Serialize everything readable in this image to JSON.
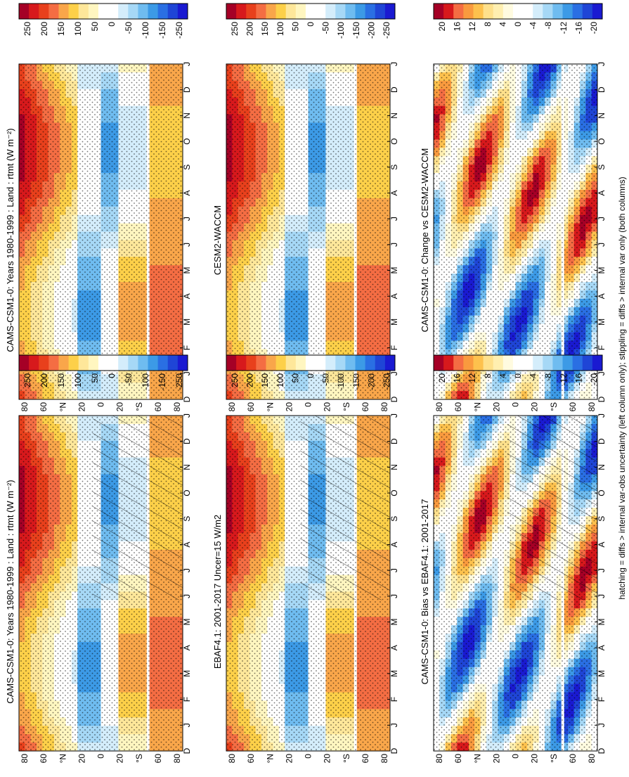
{
  "footnote": "hatching = diffs > internal var-obs uncertainty (left column only); stippling = diffs > internal var only (both columns)",
  "colors": {
    "abs_scale": [
      "#a50026",
      "#d7191c",
      "#e8401c",
      "#f46d43",
      "#f9a64a",
      "#fdd049",
      "#fee79a",
      "#fff6c0",
      "#ffffff",
      "#ffffff",
      "#d4edfb",
      "#a6d8f6",
      "#6fbcf0",
      "#3c9ae6",
      "#2a6fe3",
      "#1f45d6",
      "#1a1ad1"
    ],
    "diff_scale": [
      "#a50026",
      "#d7191c",
      "#f46d43",
      "#f99a3e",
      "#fdc14d",
      "#fee08b",
      "#ffefb0",
      "#fffbe0",
      "#ffffff",
      "#ffffff",
      "#d4edfb",
      "#a6d8f6",
      "#6fbcf0",
      "#3c9ae6",
      "#2a6fe3",
      "#1f45d6",
      "#1a1ad1"
    ]
  },
  "panels": [
    {
      "title": "CAMS-CSM1-0: Years 1980-1999 : Land : rtmt (W m⁻²)",
      "kind": "abs",
      "hatch": true,
      "colorbar": {
        "labels": [
          "250",
          "200",
          "150",
          "100",
          "50",
          "0",
          "-50",
          "-100",
          "-150",
          "-250"
        ]
      }
    },
    {
      "title": "CAMS-CSM1-0: Years 1980-1999 : Land : rtmt (W m⁻²)",
      "kind": "abs",
      "hatch": false,
      "colorbar": {
        "labels": [
          "250",
          "200",
          "150",
          "100",
          "50",
          "0",
          "-50",
          "-100",
          "-150",
          "-250"
        ]
      }
    },
    {
      "title": "EBAF4.1: 2001-2017 Uncer=15 W/m2",
      "kind": "abs",
      "hatch": true,
      "colorbar": {
        "labels": [
          "250",
          "200",
          "150",
          "100",
          "50",
          "0",
          "-50",
          "-100",
          "-150",
          "-200",
          "-250"
        ]
      }
    },
    {
      "title": "CESM2-WACCM",
      "kind": "abs",
      "hatch": false,
      "colorbar": {
        "labels": [
          "250",
          "200",
          "150",
          "100",
          "50",
          "0",
          "-50",
          "-100",
          "-150",
          "-200",
          "-250"
        ]
      }
    },
    {
      "title": "CAMS-CSM1-0: Bias vs EBAF4.1: 2001-2017",
      "kind": "diff",
      "hatch": true,
      "colorbar": {
        "labels": [
          "20",
          "16",
          "12",
          "8",
          "4",
          "0",
          "-4",
          "-8",
          "-12",
          "-16",
          "-20"
        ]
      }
    },
    {
      "title": "CAMS-CSM1-0: Change vs CESM2-WACCM",
      "kind": "diff",
      "hatch": false,
      "colorbar": {
        "labels": [
          "20",
          "16",
          "12",
          "8",
          "4",
          "0",
          "-4",
          "-8",
          "-12",
          "-16",
          "-20"
        ]
      }
    }
  ],
  "chart_data": [
    {
      "type": "heatmap",
      "title": "CAMS-CSM1-0: Years 1980-1999 : Land : rtmt (W m⁻²)",
      "x_ticks": [
        "D",
        "J",
        "F",
        "M",
        "A",
        "M",
        "J",
        "J",
        "A",
        "S",
        "O",
        "N",
        "D",
        "J"
      ],
      "y_ticks": [
        "80",
        "60",
        "°N",
        "20",
        "0",
        "20",
        "°S",
        "60",
        "80"
      ],
      "colorbar": [
        "250",
        "200",
        "150",
        "100",
        "50",
        "0",
        "-50",
        "-100",
        "-150",
        "-250"
      ]
    },
    {
      "type": "heatmap",
      "title": "CAMS-CSM1-0: Years 1980-1999 : Land : rtmt (W m⁻²)",
      "x_ticks": [
        "D",
        "J",
        "F",
        "M",
        "A",
        "M",
        "J",
        "J",
        "A",
        "S",
        "O",
        "N",
        "D",
        "J"
      ],
      "y_ticks": [
        "80",
        "60",
        "°N",
        "20",
        "0",
        "20",
        "°S",
        "60",
        "80"
      ],
      "colorbar": [
        "250",
        "200",
        "150",
        "100",
        "50",
        "0",
        "-50",
        "-100",
        "-150",
        "-250"
      ]
    },
    {
      "type": "heatmap",
      "title": "EBAF4.1: 2001-2017 Uncer=15 W/m2",
      "x_ticks": [
        "D",
        "J",
        "F",
        "M",
        "A",
        "M",
        "J",
        "J",
        "A",
        "S",
        "O",
        "N",
        "D",
        "J"
      ],
      "y_ticks": [
        "80",
        "60",
        "°N",
        "20",
        "0",
        "20",
        "°S",
        "60",
        "80"
      ],
      "colorbar": [
        "250",
        "200",
        "150",
        "100",
        "50",
        "0",
        "-50",
        "-100",
        "-150",
        "-200",
        "-250"
      ]
    },
    {
      "type": "heatmap",
      "title": "CESM2-WACCM",
      "x_ticks": [
        "D",
        "J",
        "F",
        "M",
        "A",
        "M",
        "J",
        "J",
        "A",
        "S",
        "O",
        "N",
        "D",
        "J"
      ],
      "y_ticks": [
        "80",
        "60",
        "°N",
        "20",
        "0",
        "20",
        "°S",
        "60",
        "80"
      ],
      "colorbar": [
        "250",
        "200",
        "150",
        "100",
        "50",
        "0",
        "-50",
        "-100",
        "-150",
        "-200",
        "-250"
      ]
    },
    {
      "type": "heatmap",
      "title": "CAMS-CSM1-0: Bias vs EBAF4.1: 2001-2017",
      "x_ticks": [
        "D",
        "J",
        "F",
        "M",
        "A",
        "M",
        "J",
        "J",
        "A",
        "S",
        "O",
        "N",
        "D",
        "J"
      ],
      "y_ticks": [
        "80",
        "60",
        "°N",
        "20",
        "0",
        "20",
        "°S",
        "60",
        "80"
      ],
      "colorbar": [
        "20",
        "16",
        "12",
        "8",
        "4",
        "0",
        "-4",
        "-8",
        "-12",
        "-16",
        "-20"
      ]
    },
    {
      "type": "heatmap",
      "title": "CAMS-CSM1-0: Change vs CESM2-WACCM",
      "x_ticks": [
        "D",
        "J",
        "F",
        "M",
        "A",
        "M",
        "J",
        "J",
        "A",
        "S",
        "O",
        "N",
        "D",
        "J"
      ],
      "y_ticks": [
        "80",
        "60",
        "°N",
        "20",
        "0",
        "20",
        "°S",
        "60",
        "80"
      ],
      "colorbar": [
        "20",
        "16",
        "12",
        "8",
        "4",
        "0",
        "-4",
        "-8",
        "-12",
        "-16",
        "-20"
      ]
    }
  ]
}
